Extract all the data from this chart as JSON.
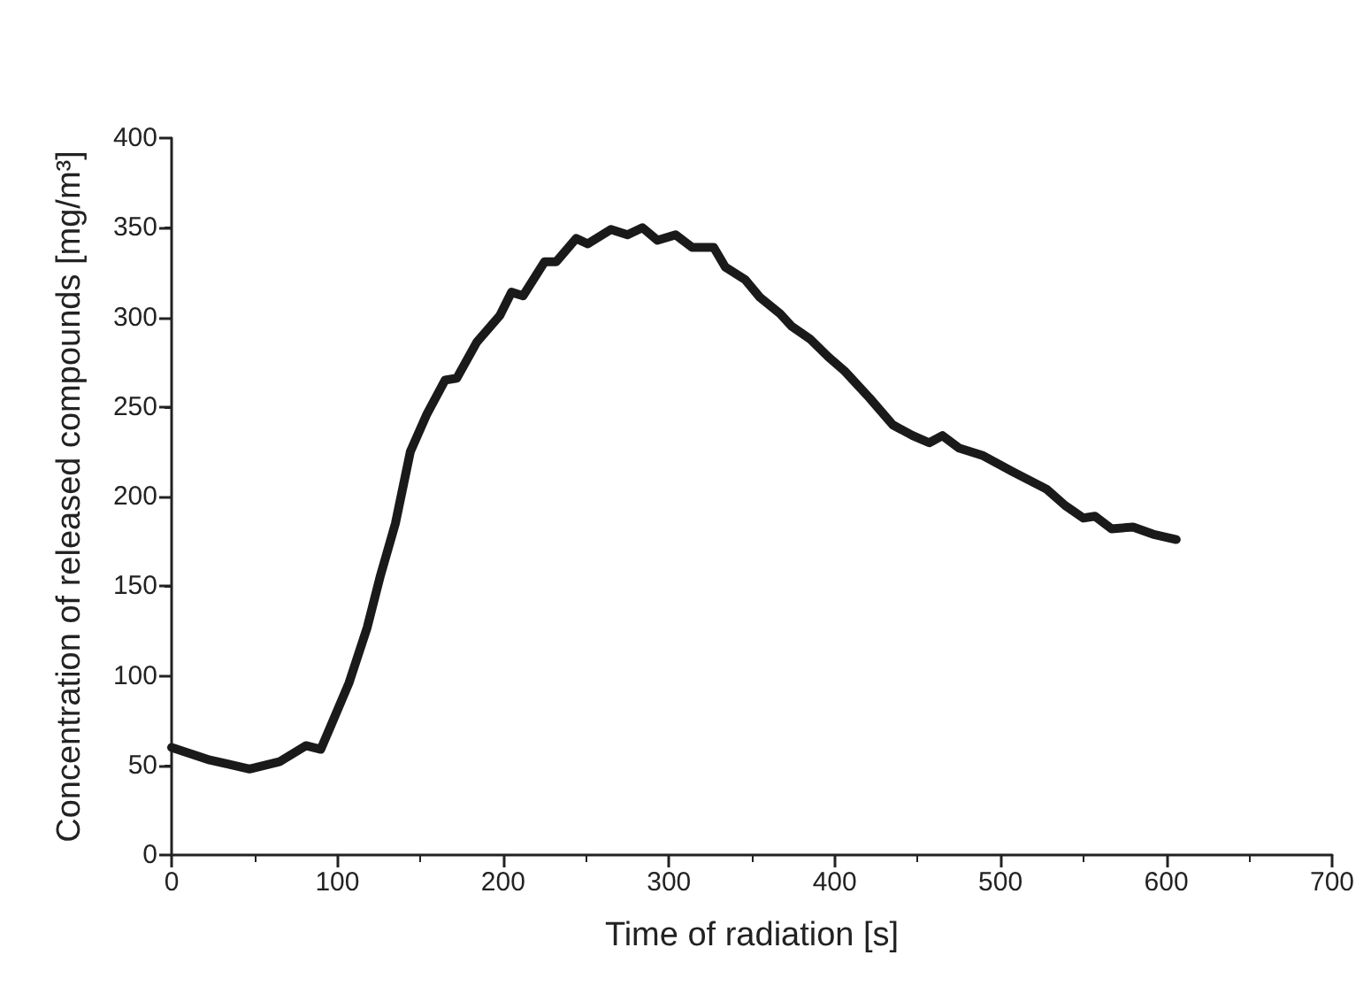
{
  "chart_data": {
    "type": "line",
    "xlabel": "Time of radiation [s]",
    "ylabel": "Concentration of released compounds [mg/m³]",
    "xlim": [
      0,
      700
    ],
    "xticks": [
      0,
      100,
      200,
      300,
      400,
      500,
      600,
      700
    ],
    "ylim": [
      0,
      400
    ],
    "yticks": [
      0,
      50,
      100,
      150,
      200,
      250,
      300,
      350,
      400
    ],
    "grid": false,
    "marker": "none",
    "line_style": "solid",
    "series": [
      {
        "color": "#1a1a1a",
        "x": [
          0,
          23,
          47,
          65,
          81,
          90,
          96,
          107,
          118,
          126,
          135,
          144,
          154,
          165,
          172,
          184,
          198,
          205,
          212,
          225,
          232,
          244,
          251,
          265,
          275,
          284,
          293,
          304,
          314,
          327,
          334,
          346,
          355,
          367,
          374,
          385,
          396,
          406,
          421,
          435,
          447,
          457,
          465,
          475,
          489,
          507,
          528,
          539,
          550,
          557,
          567,
          580,
          592,
          606
        ],
        "values": [
          60,
          53,
          48,
          52,
          61,
          59,
          72,
          96,
          127,
          156,
          185,
          225,
          246,
          265,
          266,
          286,
          301,
          314,
          312,
          331,
          331,
          344,
          341,
          349,
          346,
          350,
          343,
          346,
          339,
          339,
          328,
          321,
          311,
          302,
          295,
          288,
          278,
          270,
          255,
          240,
          234,
          230,
          234,
          227,
          223,
          214,
          204,
          195,
          188,
          189,
          182,
          183,
          179,
          176
        ]
      }
    ]
  }
}
